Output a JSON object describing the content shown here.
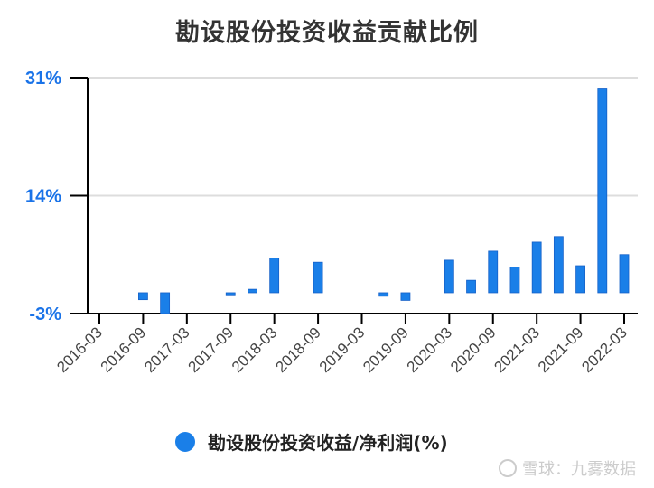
{
  "title": "勘设股份投资收益贡献比例",
  "legend": {
    "label": "勘设股份投资收益/净利润(%)",
    "color": "#1a7fe8"
  },
  "watermark": "雪球：九雾数据",
  "chart_data": {
    "type": "bar",
    "title": "勘设股份投资收益贡献比例",
    "xlabel": "",
    "ylabel": "",
    "ylim": [
      -3,
      31
    ],
    "yticks": [
      "31%",
      "14%",
      "-3%"
    ],
    "ytick_values": [
      31,
      14,
      -3
    ],
    "xticks": [
      "2016-03",
      "2016-09",
      "2017-03",
      "2017-09",
      "2018-03",
      "2018-09",
      "2019-03",
      "2019-09",
      "2020-03",
      "2020-09",
      "2021-03",
      "2021-09",
      "2022-03"
    ],
    "grid": true,
    "legend_position": "bottom",
    "series": [
      {
        "name": "勘设股份投资收益/净利润(%)",
        "color": "#1a7fe8",
        "categories": [
          "2016-06",
          "2016-09",
          "2016-12",
          "2017-03",
          "2017-06",
          "2017-09",
          "2017-12",
          "2018-03",
          "2018-06",
          "2018-09",
          "2018-12",
          "2019-03",
          "2019-06",
          "2019-09",
          "2019-12",
          "2020-03",
          "2020-06",
          "2020-09",
          "2020-12",
          "2021-03",
          "2021-06",
          "2021-09",
          "2021-12",
          "2022-03"
        ],
        "values": [
          null,
          -1.0,
          -3.0,
          null,
          null,
          -0.3,
          0.5,
          5.0,
          null,
          4.4,
          null,
          null,
          -0.5,
          -1.1,
          null,
          4.7,
          1.8,
          6.0,
          3.7,
          7.3,
          8.1,
          3.9,
          29.5,
          5.5
        ]
      }
    ]
  }
}
